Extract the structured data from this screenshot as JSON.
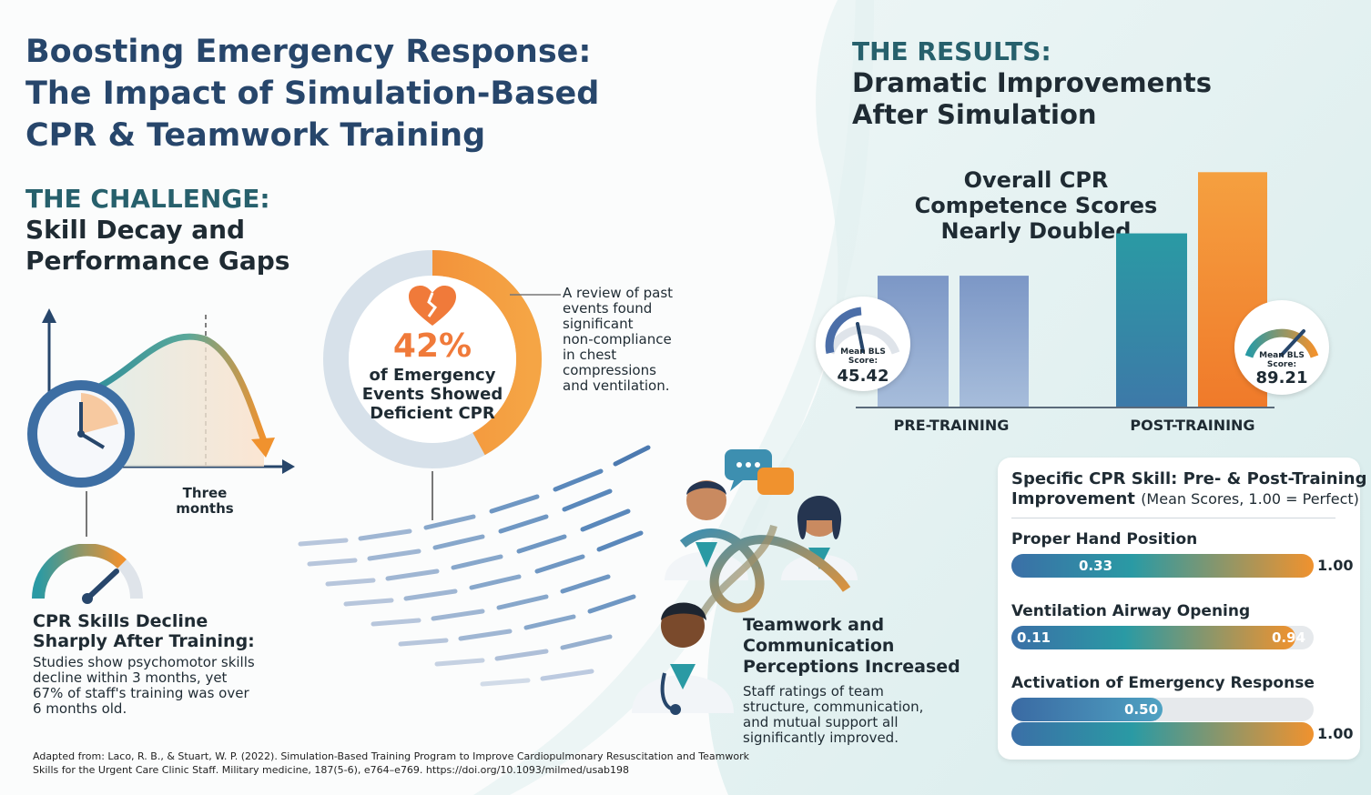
{
  "title": "Boosting Emergency Response:\nThe Impact of Simulation-Based\nCPR & Teamwork Training",
  "challenge": {
    "heading": "THE CHALLENGE:",
    "subheading": "Skill Decay and\nPerformance Gaps",
    "curve_label": "Three\nmonths",
    "decline_title": "CPR Skills Decline\nSharply After Training:",
    "decline_text": "Studies show psychomotor skills\ndecline within 3 months, yet\n67% of staff's training was over\n6 months old."
  },
  "donut": {
    "percent": "42%",
    "label": "of Emergency\nEvents Showed\nDeficient CPR",
    "value": 0.42,
    "note": "A review of past\nevents found\nsignificant\nnon-compliance\nin chest\ncompressions\nand ventilation."
  },
  "results": {
    "heading": "THE RESULTS:",
    "subheading": "Dramatic Improvements\nAfter Simulation",
    "chart_title": "Overall CPR\nCompetence Scores\nNearly Doubled",
    "pre_label": "PRE-TRAINING",
    "post_label": "POST-TRAINING",
    "gauge_label": "Mean BLS\nScore:",
    "pre_score": "45.42",
    "post_score": "89.21"
  },
  "teamwork": {
    "title": "Teamwork and\nCommunication\nPerceptions Increased",
    "text": "Staff ratings of team\nstructure, communication,\nand mutual support all\nsignificantly improved."
  },
  "skills": {
    "title": "Specific CPR Skill: Pre- & Post-Training\nImprovement",
    "title_note": "(Mean Scores, 1.00 = Perfect)",
    "items": [
      {
        "label": "Proper Hand Position",
        "pre": "0.33",
        "post": "1.00",
        "pre_value": 0.33,
        "post_value": 1.0
      },
      {
        "label": "Ventilation Airway Opening",
        "pre": "0.11",
        "post": "0.94",
        "pre_value": 0.11,
        "post_value": 0.94
      },
      {
        "label": "Activation of Emergency Response",
        "pre": "0.50",
        "post": "1.00",
        "pre_value": 0.5,
        "post_value": 1.0
      }
    ]
  },
  "citation": "Adapted from: Laco, R. B., & Stuart, W. P. (2022). Simulation-Based Training Program to Improve Cardiopulmonary Resuscitation and Teamwork\nSkills for the Urgent Care Clinic Staff. Military medicine, 187(5-6), e764–e769. https://doi.org/10.1093/milmed/usab198",
  "colors": {
    "navy": "#27466b",
    "teal": "#2a9aa4",
    "orange": "#f0922e",
    "blue": "#4b6ea8"
  },
  "chart_data": {
    "type": "bar",
    "categories": [
      "PRE-TRAINING",
      "POST-TRAINING"
    ],
    "values": [
      45.42,
      89.21
    ],
    "title": "Overall CPR\nCompetence Scores\nNearly Doubled",
    "ylim": [
      0,
      100
    ]
  }
}
